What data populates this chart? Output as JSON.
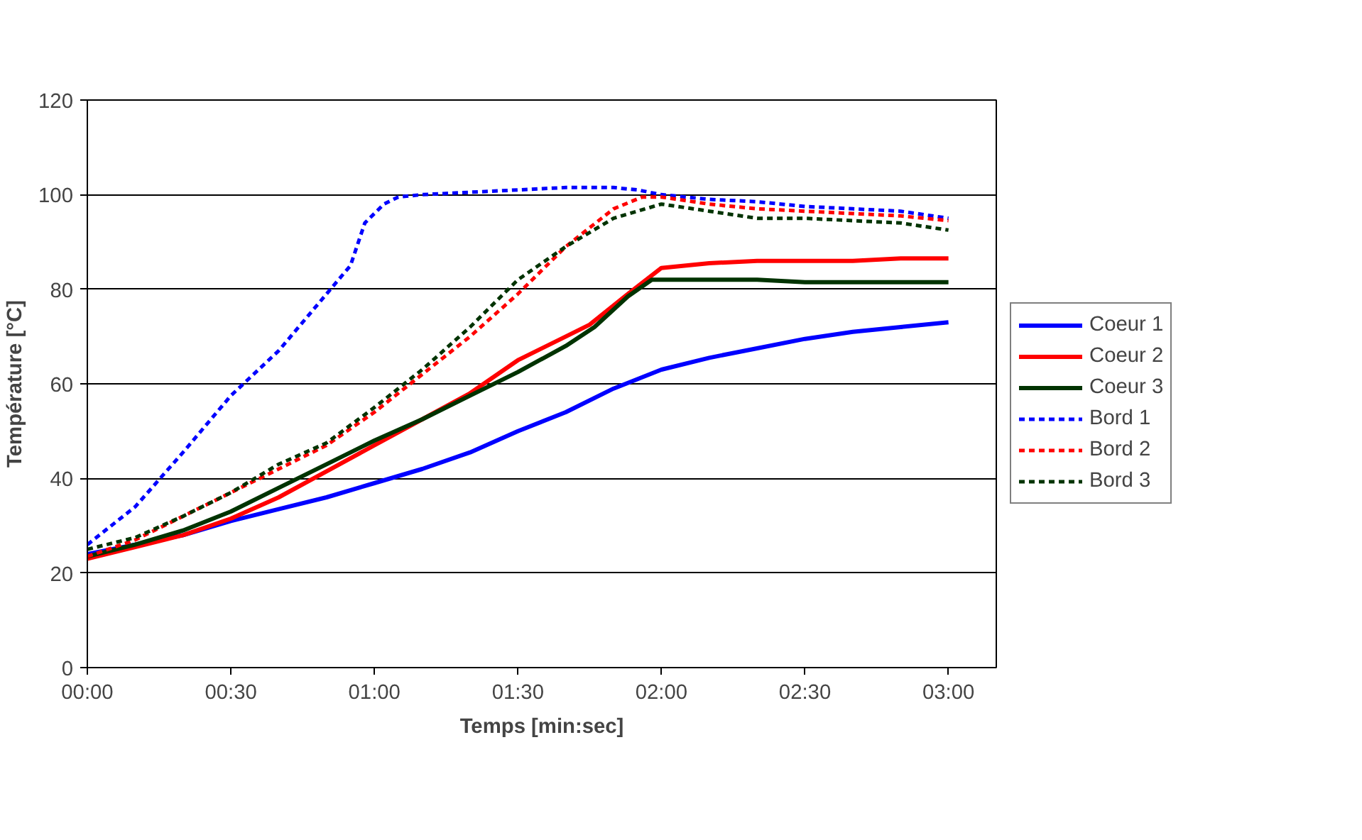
{
  "chart_data": {
    "type": "line",
    "xlabel": "Temps [min:sec]",
    "ylabel": "Température [°C]",
    "xlim": [
      0,
      190
    ],
    "xticks": [
      {
        "value": 0,
        "label": "00:00"
      },
      {
        "value": 30,
        "label": "00:30"
      },
      {
        "value": 60,
        "label": "01:00"
      },
      {
        "value": 90,
        "label": "01:30"
      },
      {
        "value": 120,
        "label": "02:00"
      },
      {
        "value": 150,
        "label": "02:30"
      },
      {
        "value": 180,
        "label": "03:00"
      }
    ],
    "ylim": [
      0,
      120
    ],
    "yticks": [
      0,
      20,
      40,
      60,
      80,
      100,
      120
    ],
    "grid": "y",
    "legend": "right",
    "marker": "none",
    "series": [
      {
        "name": "Coeur 1",
        "color": "#0000ff",
        "line_style": "solid",
        "x": [
          0,
          10,
          20,
          30,
          40,
          50,
          60,
          70,
          80,
          90,
          100,
          110,
          120,
          130,
          140,
          150,
          160,
          170,
          180
        ],
        "values": [
          24,
          26,
          28,
          31,
          33.5,
          36,
          39,
          42,
          45.5,
          50,
          54,
          59,
          63,
          65.5,
          67.5,
          69.5,
          71,
          72,
          73
        ]
      },
      {
        "name": "Coeur 2",
        "color": "#ff0000",
        "line_style": "solid",
        "x": [
          0,
          10,
          20,
          30,
          40,
          50,
          60,
          70,
          80,
          90,
          100,
          105,
          113,
          120,
          130,
          140,
          150,
          160,
          170,
          180
        ],
        "values": [
          23,
          25.5,
          28,
          31.5,
          36,
          41.5,
          47,
          52.5,
          58,
          65,
          70,
          72.5,
          79,
          84.5,
          85.5,
          86,
          86,
          86,
          86.5,
          86.5
        ]
      },
      {
        "name": "Coeur 3",
        "color": "#003300",
        "line_style": "solid",
        "x": [
          0,
          10,
          20,
          30,
          40,
          50,
          60,
          70,
          80,
          90,
          100,
          106,
          113,
          118,
          130,
          140,
          150,
          160,
          170,
          180
        ],
        "values": [
          23.5,
          26,
          29,
          33,
          38,
          43,
          48,
          52.5,
          57.5,
          62.5,
          68,
          72,
          78.5,
          82,
          82,
          82,
          81.5,
          81.5,
          81.5,
          81.5
        ]
      },
      {
        "name": "Bord 1",
        "color": "#0000ff",
        "line_style": "dashed",
        "x": [
          0,
          10,
          20,
          30,
          40,
          50,
          55,
          58,
          62,
          65,
          70,
          80,
          90,
          100,
          110,
          115,
          120,
          130,
          140,
          150,
          160,
          170,
          180
        ],
        "values": [
          26,
          34,
          45.5,
          57.5,
          67,
          79,
          85,
          94,
          98,
          99.5,
          100,
          100.5,
          101,
          101.5,
          101.5,
          101,
          100,
          99,
          98.5,
          97.5,
          97,
          96.5,
          95
        ]
      },
      {
        "name": "Bord 2",
        "color": "#ff0000",
        "line_style": "dashed",
        "x": [
          0,
          10,
          20,
          30,
          40,
          50,
          60,
          70,
          80,
          90,
          100,
          110,
          116,
          120,
          130,
          140,
          150,
          160,
          170,
          180
        ],
        "values": [
          23.5,
          27,
          32,
          37,
          42,
          47,
          54,
          62,
          70,
          79,
          89,
          97,
          99.5,
          99.5,
          98,
          97,
          96.5,
          96,
          95.5,
          94.5
        ]
      },
      {
        "name": "Bord 3",
        "color": "#003300",
        "line_style": "dashed",
        "x": [
          0,
          10,
          20,
          30,
          40,
          50,
          60,
          70,
          80,
          90,
          100,
          110,
          120,
          130,
          140,
          150,
          160,
          170,
          180
        ],
        "values": [
          25,
          27.5,
          32,
          37,
          43,
          47.5,
          55,
          63,
          72,
          82,
          89,
          95,
          98,
          96.5,
          95,
          95,
          94.5,
          94,
          92.5
        ]
      }
    ]
  }
}
